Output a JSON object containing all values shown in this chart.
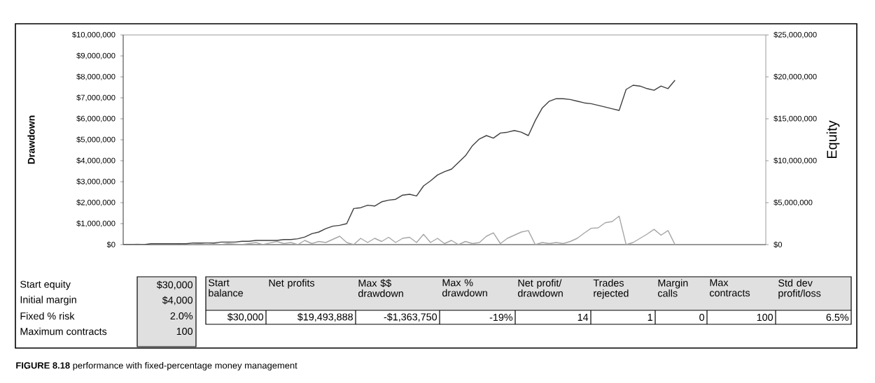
{
  "chart_data": {
    "type": "line",
    "ylabel": "Drawdown",
    "y2label": "Equity",
    "categories": [
      null,
      null,
      null,
      null,
      null,
      null,
      null,
      null,
      null,
      null,
      null,
      null,
      null,
      null,
      null,
      null,
      null,
      null,
      null,
      null,
      null,
      null,
      null,
      null,
      null,
      null,
      null,
      null,
      null,
      null,
      null,
      null,
      null,
      null,
      null,
      null,
      null,
      null,
      null,
      null,
      null,
      null,
      null,
      null,
      null,
      null,
      null,
      null,
      null,
      null,
      null,
      null,
      null,
      null,
      null,
      null,
      null,
      null,
      null,
      null,
      null,
      null,
      null,
      null,
      null,
      null,
      null,
      null,
      null,
      null,
      null,
      null,
      null,
      null,
      null,
      null,
      null,
      null,
      null,
      null,
      null,
      null,
      null,
      null,
      null,
      null,
      null,
      null,
      null,
      null,
      null,
      null,
      null
    ],
    "series": [
      {
        "color": "#a6a6a6",
        "values": [
          0,
          0,
          20000,
          0,
          30000,
          0,
          20000,
          0,
          50000,
          0,
          30000,
          50000,
          0,
          40000,
          0,
          60000,
          30000,
          0,
          50000,
          100000,
          0,
          80000,
          150000,
          50000,
          100000,
          0,
          200000,
          50000,
          150000,
          100000,
          250000,
          400000,
          100000,
          0,
          300000,
          100000,
          300000,
          150000,
          350000,
          100000,
          300000,
          350000,
          100000,
          490000,
          100000,
          300000,
          50000,
          200000,
          0,
          150000,
          50000,
          100000,
          400000,
          560000,
          50000,
          300000,
          450000,
          600000,
          670000,
          0,
          100000,
          50000,
          100000,
          50000,
          150000,
          300000,
          550000,
          780000,
          800000,
          1040000,
          1100000,
          1360000,
          0,
          100000,
          300000,
          500000,
          730000,
          450000,
          670000,
          0,
          null,
          null,
          null,
          null,
          null,
          null,
          null,
          null,
          null,
          null,
          null,
          null,
          null
        ]
      },
      {
        "color": "#404040",
        "axis": "y2",
        "values": [
          0,
          0,
          0,
          0,
          100000,
          100000,
          100000,
          100000,
          100000,
          100000,
          200000,
          200000,
          200000,
          200000,
          300000,
          300000,
          300000,
          400000,
          400000,
          500000,
          500000,
          500000,
          500000,
          600000,
          600000,
          700000,
          900000,
          1300000,
          1500000,
          1900000,
          2200000,
          2300000,
          2500000,
          4300000,
          4400000,
          4700000,
          4600000,
          5100000,
          5300000,
          5400000,
          5900000,
          6000000,
          5800000,
          7000000,
          7600000,
          8300000,
          8700000,
          9000000,
          9800000,
          10600000,
          11800000,
          12600000,
          13000000,
          12700000,
          13300000,
          13400000,
          13600000,
          13400000,
          13000000,
          14800000,
          16300000,
          17100000,
          17400000,
          17400000,
          17300000,
          17100000,
          16900000,
          16800000,
          16600000,
          16400000,
          16200000,
          16000000,
          18500000,
          19000000,
          18900000,
          18600000,
          18400000,
          18900000,
          18600000,
          19600000,
          null,
          null,
          null,
          null,
          null,
          null,
          null,
          null,
          null,
          null,
          null,
          null,
          null
        ]
      }
    ],
    "ylim": [
      0,
      10000000
    ],
    "yticks": [
      {
        "value": 0,
        "label": "$0"
      },
      {
        "value": 1000000,
        "label": "$1,000,000"
      },
      {
        "value": 2000000,
        "label": "$2,000,000"
      },
      {
        "value": 3000000,
        "label": "$3,000,000"
      },
      {
        "value": 4000000,
        "label": "$4,000,000"
      },
      {
        "value": 5000000,
        "label": "$5,000,000"
      },
      {
        "value": 6000000,
        "label": "$6,000,000"
      },
      {
        "value": 7000000,
        "label": "$7,000,000"
      },
      {
        "value": 8000000,
        "label": "$8,000,000"
      },
      {
        "value": 9000000,
        "label": "$9,000,000"
      },
      {
        "value": 10000000,
        "label": "$10,000,000"
      }
    ],
    "y2lim": [
      0,
      25000000
    ],
    "y2ticks": [
      {
        "value": 0,
        "label": "$0"
      },
      {
        "value": 5000000,
        "label": "$5,000,000"
      },
      {
        "value": 10000000,
        "label": "$10,000,000"
      },
      {
        "value": 15000000,
        "label": "$15,000,000"
      },
      {
        "value": 20000000,
        "label": "$20,000,000"
      },
      {
        "value": 25000000,
        "label": "$25,000,000"
      }
    ],
    "annotations": [
      "Start equity",
      "$30,000",
      "Initial margin",
      "$4,000",
      "Fixed % risk",
      "2.0%",
      "Maximum contracts",
      "100",
      "Start balance",
      "Net profits",
      "Max $$ drawdown",
      "Max % drawdown",
      "Net profit/ drawdown",
      "Trades rejected",
      "Margin calls",
      "Max contracts",
      "Std dev profit/loss",
      "$30,000",
      "$19,493,888",
      "-$1,363,750",
      "-19%",
      "14",
      "1",
      "0",
      "100",
      "6.5%",
      "**FIGURE 8.18** performance with fixed-percentage money management"
    ]
  }
}
